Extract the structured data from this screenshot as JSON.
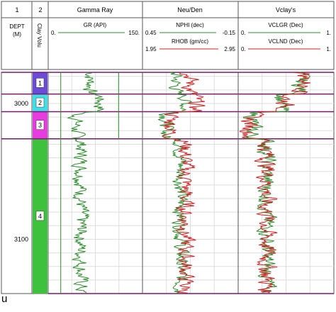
{
  "corner_char": "u",
  "header": {
    "track_numbers": [
      "1",
      "2",
      "",
      "",
      ""
    ],
    "track_titles": [
      "",
      "",
      "Gamma Ray",
      "Neu/Den",
      "Vclay's"
    ],
    "depth_label_1": "DEPT",
    "depth_label_2": "(M)",
    "clay_label": "Clay Volu"
  },
  "chart_data": {
    "type": "line",
    "depth_labels": [
      "3000",
      "3100"
    ],
    "zones": [
      {
        "label": "1",
        "top": 2977,
        "base": 2993,
        "color": "#6b4bd8"
      },
      {
        "label": "2",
        "top": 2993,
        "base": 3006,
        "color": "#3ee0e8"
      },
      {
        "label": "3",
        "top": 3006,
        "base": 3026,
        "color": "#e63ce0"
      },
      {
        "label": "4",
        "top": 3026,
        "base": 3140,
        "color": "#3ec23e"
      }
    ],
    "curves": {
      "GR": {
        "name": "GR (API)",
        "min": "0.",
        "max": "150.",
        "color": "#2e8b2e"
      },
      "NPHI": {
        "name": "NPHI (dec)",
        "min": "0.45",
        "max": "-0.15",
        "color": "#2e8b2e"
      },
      "RHOB": {
        "name": "RHOB (gm/cc)",
        "min": "1.95",
        "max": "2.95",
        "color": "#cc2222"
      },
      "VCLGR": {
        "name": "VCLGR (Dec)",
        "min": "0.",
        "max": "1.",
        "color": "#2e8b2e"
      },
      "VCLND": {
        "name": "VCLND (Dec)",
        "min": "0.",
        "max": "1.",
        "color": "#cc2222"
      }
    },
    "gr_cutoffs": [
      {
        "value": 20,
        "top": 2977,
        "base": 3026
      },
      {
        "value": 112,
        "top": 2977,
        "base": 3026
      },
      {
        "value": 20,
        "top": 3026,
        "base": 3140
      },
      {
        "value": 150,
        "top": 3026,
        "base": 3140
      }
    ],
    "depth_range": [
      2977,
      3140
    ]
  }
}
